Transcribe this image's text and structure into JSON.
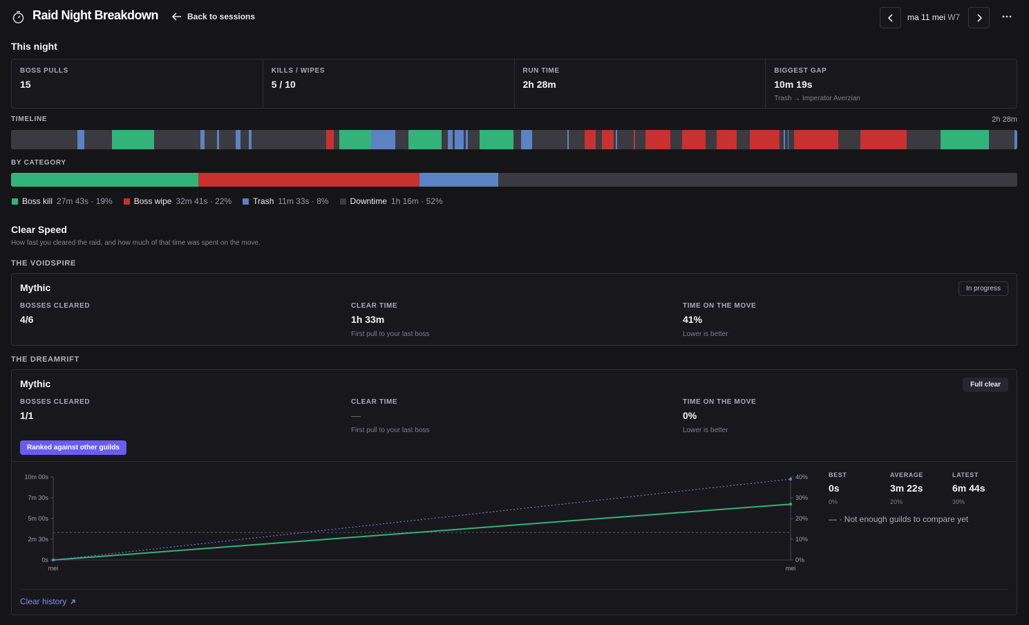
{
  "header": {
    "title": "Raid Night Breakdown",
    "back_label": "Back to sessions",
    "date": "ma 11 mei",
    "week": "W7"
  },
  "this_night_label": "This night",
  "stats": [
    {
      "label": "BOSS PULLS",
      "value": "15",
      "sub": ""
    },
    {
      "label": "KILLS / WIPES",
      "value": "5 / 10",
      "sub": ""
    },
    {
      "label": "RUN TIME",
      "value": "2h 28m",
      "sub": ""
    },
    {
      "label": "BIGGEST GAP",
      "value": "10m 19s",
      "sub": "Trash → Imperator Averzian"
    }
  ],
  "timeline": {
    "label": "TIMELINE",
    "total": "2h 28m",
    "segments": [
      [
        "down",
        0,
        6.6
      ],
      [
        "trash",
        6.6,
        0.7
      ],
      [
        "down",
        7.3,
        2.7
      ],
      [
        "kill",
        10,
        4.2
      ],
      [
        "down",
        14.2,
        4.6
      ],
      [
        "trash",
        18.8,
        0.4
      ],
      [
        "down",
        19.2,
        1.3
      ],
      [
        "trash",
        20.5,
        0.15
      ],
      [
        "down",
        20.65,
        1.7
      ],
      [
        "trash",
        22.35,
        0.45
      ],
      [
        "down",
        22.8,
        0.8
      ],
      [
        "trash",
        23.6,
        0.3
      ],
      [
        "down",
        23.9,
        7.4
      ],
      [
        "wipe",
        31.3,
        0.8
      ],
      [
        "down",
        32.1,
        0.5
      ],
      [
        "kill",
        32.6,
        3.2
      ],
      [
        "trash",
        35.8,
        2.4
      ],
      [
        "down",
        38.2,
        1.3
      ],
      [
        "kill",
        39.5,
        3.3
      ],
      [
        "down",
        42.8,
        0.6
      ],
      [
        "trash",
        43.4,
        0.5
      ],
      [
        "down",
        43.9,
        0.2
      ],
      [
        "trash",
        44.1,
        0.9
      ],
      [
        "down",
        45,
        0.2
      ],
      [
        "trash",
        45.2,
        0.2
      ],
      [
        "down",
        45.4,
        1.2
      ],
      [
        "kill",
        46.6,
        3.3
      ],
      [
        "down",
        49.9,
        0.8
      ],
      [
        "trash",
        50.7,
        1.1
      ],
      [
        "down",
        51.8,
        3.5
      ],
      [
        "trash",
        55.3,
        0.1
      ],
      [
        "down",
        55.4,
        1.6
      ],
      [
        "wipe",
        57,
        1.1
      ],
      [
        "down",
        58.1,
        0.6
      ],
      [
        "wipe",
        58.7,
        1.2
      ],
      [
        "down",
        59.9,
        0.2
      ],
      [
        "trash",
        60.1,
        0.1
      ],
      [
        "down",
        60.2,
        1.7
      ],
      [
        "wipe",
        61.9,
        0.15
      ],
      [
        "down",
        62.05,
        1
      ],
      [
        "wipe",
        63.05,
        2.45
      ],
      [
        "down",
        65.5,
        1.2
      ],
      [
        "wipe",
        66.7,
        2.3
      ],
      [
        "down",
        69,
        1.1
      ],
      [
        "wipe",
        70.1,
        2
      ],
      [
        "down",
        72.1,
        1.3
      ],
      [
        "wipe",
        73.4,
        3
      ],
      [
        "down",
        76.4,
        0.4
      ],
      [
        "trash",
        76.8,
        0.1
      ],
      [
        "down",
        76.9,
        0.3
      ],
      [
        "trash",
        77.2,
        0.1
      ],
      [
        "down",
        77.3,
        0.5
      ],
      [
        "wipe",
        77.8,
        4.4
      ],
      [
        "down",
        82.2,
        2.2
      ],
      [
        "wipe",
        84.4,
        4.6
      ],
      [
        "down",
        89,
        3.4
      ],
      [
        "kill",
        92.4,
        4.8
      ],
      [
        "down",
        97.2,
        0.4
      ],
      [
        "trash",
        99.7,
        0.3
      ]
    ]
  },
  "by_category": {
    "label": "BY CATEGORY",
    "items": [
      {
        "name": "Boss kill",
        "stat": "27m 43s · 19%",
        "pct": 18.6,
        "color": "#33b37a"
      },
      {
        "name": "Boss wipe",
        "stat": "32m 41s · 22%",
        "pct": 22.0,
        "color": "#c8312f"
      },
      {
        "name": "Trash",
        "stat": "11m 33s · 8%",
        "pct": 7.8,
        "color": "#5b82c4"
      },
      {
        "name": "Downtime",
        "stat": "1h 16m · 52%",
        "pct": 51.6,
        "color": "#3a3a40"
      }
    ]
  },
  "clear_speed": {
    "title": "Clear Speed",
    "subtitle": "How fast you cleared the raid, and how much of that time was spent on the move.",
    "raids": [
      {
        "name": "THE VOIDSPIRE",
        "difficulty": "Mythic",
        "badge": "In progress",
        "bosses_label": "BOSSES CLEARED",
        "bosses": "4/6",
        "clear_label": "CLEAR TIME",
        "clear": "1h 33m",
        "clear_sub": "First pull to your last boss",
        "move_label": "TIME ON THE MOVE",
        "move": "41%",
        "move_sub": "Lower is better"
      },
      {
        "name": "THE DREAMRIFT",
        "difficulty": "Mythic",
        "badge": "Full clear",
        "bosses_label": "BOSSES CLEARED",
        "bosses": "1/1",
        "clear_label": "CLEAR TIME",
        "clear": "—",
        "clear_sub": "First pull to your last boss",
        "move_label": "TIME ON THE MOVE",
        "move": "0%",
        "move_sub": "Lower is better",
        "rank_button": "Ranked against other guilds",
        "summary": [
          {
            "label": "BEST",
            "value": "0s",
            "sub": "0%"
          },
          {
            "label": "AVERAGE",
            "value": "3m 22s",
            "sub": "20%"
          },
          {
            "label": "LATEST",
            "value": "6m 44s",
            "sub": "39%"
          }
        ],
        "not_enough": "— · Not enough guilds to compare yet",
        "clear_history": "Clear history"
      }
    ]
  },
  "chart_data": {
    "type": "line",
    "x": [
      "mei",
      "mei"
    ],
    "left_ticks": [
      "10m 00s",
      "7m 30s",
      "5m 00s",
      "2m 30s",
      "0s"
    ],
    "right_ticks": [
      "40%",
      "30%",
      "20%",
      "10%",
      "0%"
    ],
    "ylim_left_seconds": [
      0,
      600
    ],
    "ylim_right_pct": [
      0,
      40
    ],
    "series": [
      {
        "axis": "left",
        "style": "solid",
        "color": "#33b37a",
        "values": [
          0,
          404
        ]
      },
      {
        "axis": "right",
        "style": "dotted",
        "color": "#6a78d8",
        "values": [
          0,
          39
        ]
      }
    ],
    "reference_line_pct": 13.3
  }
}
